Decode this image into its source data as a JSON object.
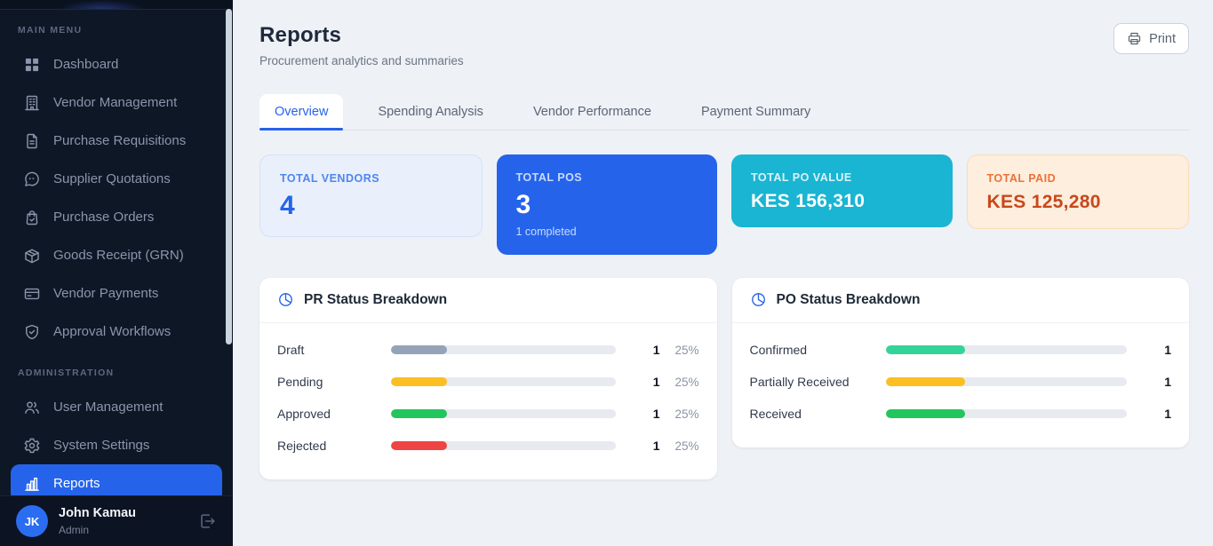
{
  "app": {
    "accent_color": "#2563eb",
    "sidebar_bg": "#0e1726",
    "main_bg": "#eef1f6"
  },
  "sidebar": {
    "sections": [
      {
        "label": "MAIN MENU",
        "items": [
          {
            "label": "Dashboard",
            "icon": "dashboard-grid",
            "active": false
          },
          {
            "label": "Vendor Management",
            "icon": "building",
            "active": false
          },
          {
            "label": "Purchase Requisitions",
            "icon": "document",
            "active": false
          },
          {
            "label": "Supplier Quotations",
            "icon": "chat-quote",
            "active": false
          },
          {
            "label": "Purchase Orders",
            "icon": "shopping-bag-check",
            "active": false
          },
          {
            "label": "Goods Receipt (GRN)",
            "icon": "package",
            "active": false
          },
          {
            "label": "Vendor Payments",
            "icon": "credit-card",
            "active": false
          },
          {
            "label": "Approval Workflows",
            "icon": "shield-check",
            "active": false
          }
        ]
      },
      {
        "label": "ADMINISTRATION",
        "items": [
          {
            "label": "User Management",
            "icon": "users",
            "active": false
          },
          {
            "label": "System Settings",
            "icon": "gear",
            "active": false
          },
          {
            "label": "Reports",
            "icon": "bar-chart",
            "active": true
          }
        ]
      }
    ],
    "user": {
      "initials": "JK",
      "name": "John Kamau",
      "role": "Admin"
    }
  },
  "header": {
    "title": "Reports",
    "subtitle": "Procurement analytics and summaries",
    "print_button": "Print"
  },
  "tabs": [
    {
      "label": "Overview",
      "active": true
    },
    {
      "label": "Spending Analysis",
      "active": false
    },
    {
      "label": "Vendor Performance",
      "active": false
    },
    {
      "label": "Payment Summary",
      "active": false
    }
  ],
  "stats": [
    {
      "label": "TOTAL VENDORS",
      "value": "4",
      "note": "",
      "theme": "light-blue"
    },
    {
      "label": "TOTAL POS",
      "value": "3",
      "note": "1 completed",
      "theme": "blue"
    },
    {
      "label": "TOTAL PO VALUE",
      "value": "KES 156,310",
      "note": "",
      "theme": "cyan"
    },
    {
      "label": "TOTAL PAID",
      "value": "KES 125,280",
      "note": "",
      "theme": "peach"
    }
  ],
  "breakdowns": [
    {
      "title": "PR Status Breakdown",
      "icon": "pie-chart",
      "rows": [
        {
          "label": "Draft",
          "count": "1",
          "pct": "25%",
          "fill_pct": 25,
          "color": "#94a3b8"
        },
        {
          "label": "Pending",
          "count": "1",
          "pct": "25%",
          "fill_pct": 25,
          "color": "#fbbf24"
        },
        {
          "label": "Approved",
          "count": "1",
          "pct": "25%",
          "fill_pct": 25,
          "color": "#22c55e"
        },
        {
          "label": "Rejected",
          "count": "1",
          "pct": "25%",
          "fill_pct": 25,
          "color": "#ef4444"
        }
      ]
    },
    {
      "title": "PO Status Breakdown",
      "icon": "pie-chart",
      "rows": [
        {
          "label": "Confirmed",
          "count": "1",
          "pct": "",
          "fill_pct": 33,
          "color": "#34d399"
        },
        {
          "label": "Partially Received",
          "count": "1",
          "pct": "",
          "fill_pct": 33,
          "color": "#fbbf24"
        },
        {
          "label": "Received",
          "count": "1",
          "pct": "",
          "fill_pct": 33,
          "color": "#22c55e"
        }
      ]
    }
  ]
}
